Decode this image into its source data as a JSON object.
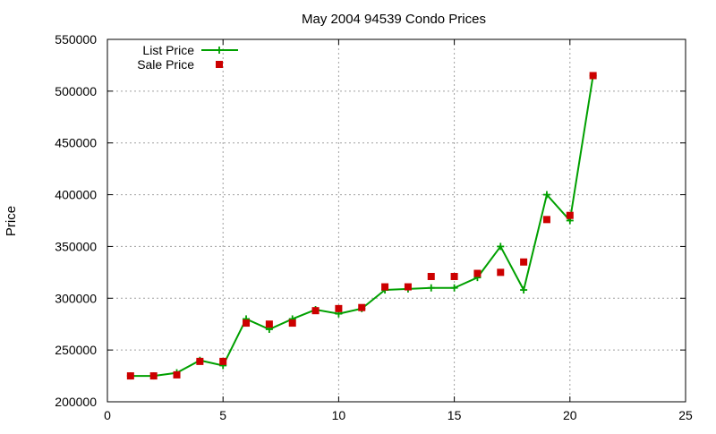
{
  "chart_data": {
    "type": "line",
    "title": "May 2004 94539 Condo Prices",
    "xlabel": "",
    "ylabel": "Price",
    "xlim": [
      0,
      25
    ],
    "ylim": [
      200000,
      550000
    ],
    "x_ticks": [
      0,
      5,
      10,
      15,
      20,
      25
    ],
    "y_ticks": [
      200000,
      250000,
      300000,
      350000,
      400000,
      450000,
      500000,
      550000
    ],
    "grid": true,
    "legend_position": "top-left",
    "series": [
      {
        "name": "List Price",
        "style": "line+cross",
        "color": "#00a000",
        "x": [
          1,
          2,
          3,
          4,
          5,
          6,
          7,
          8,
          9,
          10,
          11,
          12,
          13,
          14,
          15,
          16,
          17,
          18,
          19,
          20,
          21
        ],
        "y": [
          225000,
          225000,
          228000,
          240000,
          235000,
          280000,
          270000,
          280000,
          289000,
          285000,
          290000,
          308000,
          309000,
          310000,
          310000,
          320000,
          350000,
          308000,
          400000,
          375000,
          515000
        ]
      },
      {
        "name": "Sale Price",
        "style": "square",
        "color": "#cc0000",
        "x": [
          1,
          2,
          3,
          4,
          5,
          6,
          7,
          8,
          9,
          10,
          11,
          12,
          13,
          14,
          15,
          16,
          17,
          18,
          19,
          20,
          21
        ],
        "y": [
          225000,
          225000,
          226000,
          239000,
          239000,
          276000,
          275000,
          276000,
          288000,
          290000,
          291000,
          311000,
          311000,
          321000,
          321000,
          324000,
          325000,
          335000,
          376000,
          380000,
          515000
        ]
      }
    ]
  }
}
